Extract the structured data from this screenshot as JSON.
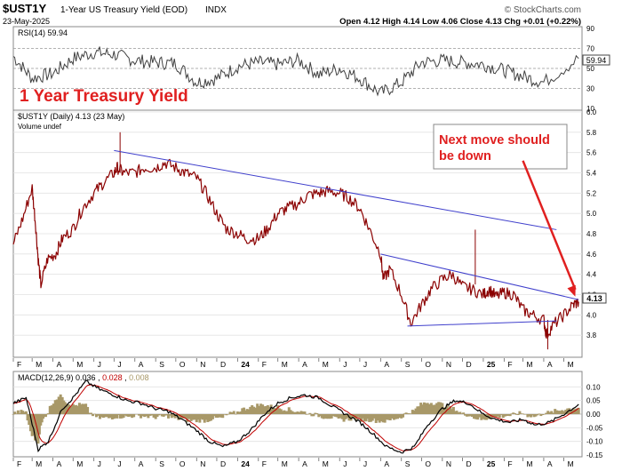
{
  "header": {
    "symbol": "$UST1Y",
    "description": "1-Year US Treasury Yield (EOD)",
    "exchange": "INDX",
    "date": "23-May-2025",
    "ohlc": "Open 4.12  High 4.14  Low 4.06  Close 4.13  Chg +0.01 (+0.22%)",
    "watermark": "© StockCharts.com"
  },
  "annotations": {
    "chart_title": "1 Year Treasury Yield",
    "callout_line1": "Next move should",
    "callout_line2": "be down"
  },
  "colors": {
    "price": "#8b0000",
    "trendline": "#4040cc",
    "callout_red": "#e02020",
    "grid": "#d8d8d8",
    "macd_line": "#000000",
    "signal_line": "#c00000",
    "histogram": "#a89868",
    "rsi_line": "#404040"
  },
  "chart_data": [
    {
      "type": "line",
      "panel": "rsi",
      "label": "RSI(14) 59.94",
      "last_value": "59.94",
      "ylim": [
        10,
        90
      ],
      "yticks": [
        10,
        30,
        50,
        70,
        90
      ],
      "reference_lines": [
        30,
        50,
        70
      ],
      "series": [
        {
          "x": [
            "2023-02-01",
            "2023-03-01",
            "2023-04-01",
            "2023-05-01",
            "2023-06-01",
            "2023-07-01",
            "2023-08-01",
            "2023-09-01",
            "2023-10-01",
            "2023-11-01",
            "2023-12-01",
            "2024-01-01",
            "2024-02-01",
            "2024-03-01",
            "2024-04-01",
            "2024-05-01",
            "2024-06-01",
            "2024-07-01",
            "2024-08-01",
            "2024-09-01",
            "2024-10-01",
            "2024-11-01",
            "2024-12-01",
            "2025-01-01",
            "2025-02-01",
            "2025-03-01",
            "2025-04-01",
            "2025-05-23"
          ],
          "values": [
            62,
            40,
            45,
            60,
            66,
            64,
            58,
            56,
            55,
            36,
            40,
            52,
            56,
            54,
            58,
            44,
            50,
            40,
            25,
            36,
            56,
            58,
            56,
            54,
            48,
            42,
            36,
            59.94
          ]
        }
      ]
    },
    {
      "type": "line",
      "panel": "price",
      "label": "$UST1Y (Daily) 4.13 (23 May)",
      "volume_label": "Volume undef",
      "last_value": "4.13",
      "ylim": [
        3.6,
        6.0
      ],
      "yticks": [
        3.8,
        4.0,
        4.2,
        4.4,
        4.6,
        4.8,
        5.0,
        5.2,
        5.4,
        5.6,
        5.8,
        6.0
      ],
      "x_ticks": [
        "F",
        "M",
        "A",
        "M",
        "J",
        "J",
        "A",
        "S",
        "O",
        "N",
        "D",
        "24",
        "F",
        "M",
        "A",
        "M",
        "J",
        "J",
        "A",
        "S",
        "O",
        "N",
        "D",
        "25",
        "F",
        "M",
        "A",
        "M"
      ],
      "series": [
        {
          "x": [
            "2023-02-01",
            "2023-02-15",
            "2023-03-01",
            "2023-03-06",
            "2023-03-10",
            "2023-03-14",
            "2023-03-24",
            "2023-04-05",
            "2023-04-15",
            "2023-05-01",
            "2023-05-15",
            "2023-06-01",
            "2023-06-15",
            "2023-07-01",
            "2023-07-06",
            "2023-07-15",
            "2023-08-01",
            "2023-08-15",
            "2023-09-01",
            "2023-09-15",
            "2023-10-01",
            "2023-10-15",
            "2023-11-01",
            "2023-11-15",
            "2023-12-01",
            "2023-12-15",
            "2024-01-01",
            "2024-01-15",
            "2024-02-01",
            "2024-02-15",
            "2024-03-01",
            "2024-03-15",
            "2024-04-01",
            "2024-04-15",
            "2024-05-01",
            "2024-05-15",
            "2024-06-01",
            "2024-06-15",
            "2024-07-01",
            "2024-07-15",
            "2024-08-01",
            "2024-08-05",
            "2024-08-15",
            "2024-09-01",
            "2024-09-15",
            "2024-10-01",
            "2024-10-15",
            "2024-11-01",
            "2024-11-15",
            "2024-12-01",
            "2024-12-15",
            "2025-01-01",
            "2025-01-10",
            "2025-01-20",
            "2025-02-01",
            "2025-02-15",
            "2025-03-01",
            "2025-03-15",
            "2025-04-01",
            "2025-04-05",
            "2025-04-15",
            "2025-05-01",
            "2025-05-15",
            "2025-05-23"
          ],
          "values": [
            4.7,
            4.95,
            5.25,
            4.9,
            4.55,
            4.3,
            4.55,
            4.6,
            4.75,
            4.85,
            5.05,
            5.2,
            5.3,
            5.4,
            5.45,
            5.4,
            5.4,
            5.45,
            5.45,
            5.5,
            5.45,
            5.4,
            5.35,
            5.2,
            5.0,
            4.85,
            4.8,
            4.75,
            4.75,
            4.85,
            5.0,
            5.05,
            5.1,
            5.18,
            5.2,
            5.22,
            5.2,
            5.15,
            5.05,
            4.85,
            4.6,
            4.35,
            4.45,
            4.2,
            3.92,
            4.1,
            4.25,
            4.35,
            4.4,
            4.28,
            4.25,
            4.2,
            4.25,
            4.18,
            4.22,
            4.2,
            4.05,
            4.0,
            3.95,
            3.8,
            3.9,
            4.0,
            4.1,
            4.13
          ]
        }
      ],
      "trendlines": [
        {
          "from": [
            "2023-07-01",
            5.62
          ],
          "to": [
            "2025-04-20",
            4.84
          ]
        },
        {
          "from": [
            "2024-08-01",
            4.6
          ],
          "to": [
            "2025-05-23",
            4.15
          ]
        },
        {
          "from": [
            "2024-09-10",
            3.89
          ],
          "to": [
            "2025-04-20",
            3.94
          ]
        }
      ],
      "arrow": {
        "from": [
          "2025-03-01",
          5.52
        ],
        "to": [
          "2025-05-18",
          4.18
        ]
      }
    },
    {
      "type": "line",
      "panel": "macd",
      "label": "MACD(12,26,9) 0.036, 0.028, 0.008",
      "macd_value": "0.036",
      "signal_value": "0.028",
      "hist_value": "0.008",
      "ylim": [
        -0.15,
        0.15
      ],
      "yticks": [
        -0.15,
        -0.1,
        -0.05,
        0.0,
        0.05,
        0.1
      ],
      "series": [
        {
          "name": "MACD",
          "x": [
            "2023-02-01",
            "2023-02-20",
            "2023-03-10",
            "2023-03-25",
            "2023-04-15",
            "2023-05-01",
            "2023-05-20",
            "2023-06-10",
            "2023-07-01",
            "2023-07-20",
            "2023-08-10",
            "2023-09-01",
            "2023-09-20",
            "2023-10-10",
            "2023-11-01",
            "2023-11-20",
            "2023-12-10",
            "2024-01-01",
            "2024-01-20",
            "2024-02-10",
            "2024-03-01",
            "2024-03-20",
            "2024-04-10",
            "2024-05-01",
            "2024-05-20",
            "2024-06-10",
            "2024-07-01",
            "2024-07-20",
            "2024-08-10",
            "2024-09-01",
            "2024-09-20",
            "2024-10-10",
            "2024-11-01",
            "2024-11-20",
            "2024-12-10",
            "2025-01-01",
            "2025-01-20",
            "2025-02-10",
            "2025-03-01",
            "2025-03-20",
            "2025-04-10",
            "2025-05-01",
            "2025-05-23"
          ],
          "values": [
            0.04,
            0.06,
            -0.13,
            -0.1,
            0.02,
            0.06,
            0.12,
            0.09,
            0.07,
            0.05,
            0.04,
            0.02,
            0.01,
            -0.02,
            -0.06,
            -0.1,
            -0.12,
            -0.1,
            -0.06,
            0.0,
            0.04,
            0.06,
            0.07,
            0.06,
            0.03,
            0.0,
            -0.03,
            -0.07,
            -0.12,
            -0.14,
            -0.12,
            -0.04,
            0.02,
            0.05,
            0.04,
            0.0,
            -0.02,
            -0.03,
            -0.02,
            -0.04,
            -0.03,
            0.0,
            0.036
          ]
        }
      ]
    }
  ]
}
